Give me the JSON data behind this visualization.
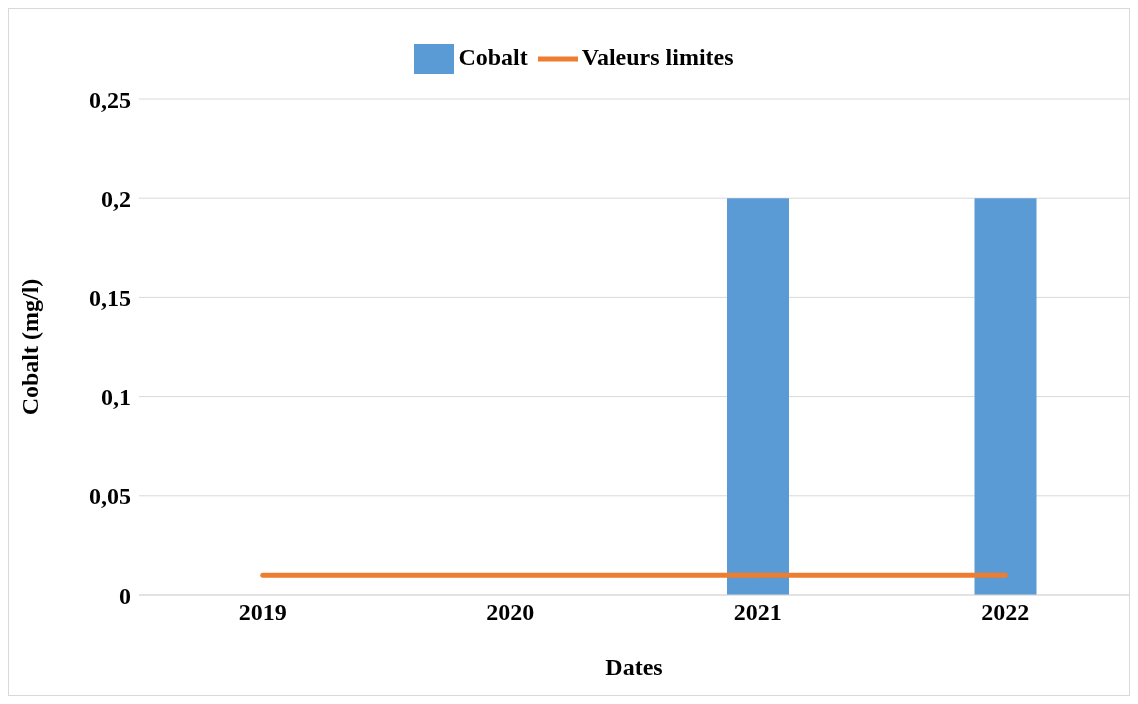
{
  "chart_data": {
    "type": "bar",
    "xlabel": "Dates",
    "ylabel": "Cobalt (mg/l)",
    "categories": [
      "2019",
      "2020",
      "2021",
      "2022"
    ],
    "series": [
      {
        "name": "Cobalt",
        "color": "#5b9bd5",
        "values": [
          0,
          0,
          0.2,
          0.2
        ]
      },
      {
        "name": "Valeurs limites",
        "type": "line",
        "color": "#ed7d31",
        "values": [
          0.01,
          0.01,
          0.01,
          0.01
        ]
      }
    ],
    "ylim": [
      0,
      0.25
    ],
    "yticks": [
      {
        "value": 0,
        "label": "0"
      },
      {
        "value": 0.05,
        "label": "0,05"
      },
      {
        "value": 0.1,
        "label": "0,1"
      },
      {
        "value": 0.15,
        "label": "0,15"
      },
      {
        "value": 0.2,
        "label": "0,2"
      },
      {
        "value": 0.25,
        "label": "0,25"
      }
    ],
    "grid": "y",
    "legend": "top",
    "marker": "none"
  }
}
